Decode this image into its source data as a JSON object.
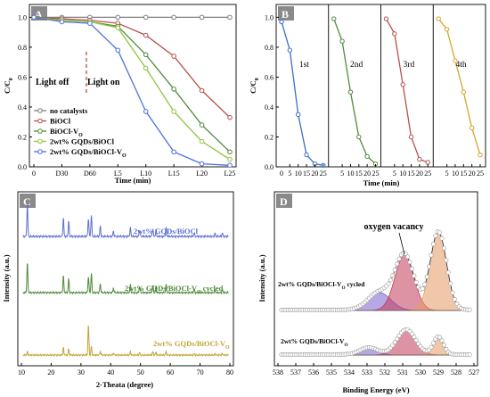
{
  "chart_data": [
    {
      "panel": "A",
      "type": "line",
      "xlabel": "Time (min)",
      "ylabel": "C/C",
      "ylabel_sub": "0",
      "xtick_labels": [
        "0",
        "D30",
        "D60",
        "L5",
        "L10",
        "L15",
        "L20",
        "L25"
      ],
      "yticks": [
        "0.0",
        "0.2",
        "0.4",
        "0.6",
        "0.8",
        "1.0"
      ],
      "ylim": [
        0.0,
        1.05
      ],
      "annotations": {
        "light_off": "Light off",
        "light_on": "Light on"
      },
      "legend_position": "bottom-left",
      "series": [
        {
          "name": "no catalysts",
          "color": "#7f7f7f",
          "values": [
            1.0,
            1.0,
            1.0,
            1.0,
            1.0,
            1.0,
            1.0,
            1.0
          ]
        },
        {
          "name": "BiOCl",
          "color": "#b5514a",
          "values": [
            1.0,
            0.99,
            0.98,
            0.96,
            0.88,
            0.74,
            0.51,
            0.33
          ]
        },
        {
          "name": "BiOCl-V",
          "sub": "O",
          "color": "#4f8a3c",
          "values": [
            1.0,
            0.98,
            0.97,
            0.94,
            0.75,
            0.52,
            0.28,
            0.1
          ]
        },
        {
          "name": "2wt% GQDs/BiOCl",
          "color": "#8dc63f",
          "values": [
            1.0,
            0.98,
            0.97,
            0.93,
            0.66,
            0.37,
            0.17,
            0.05
          ]
        },
        {
          "name": "2wt% GQDs/BiOCl-V",
          "sub": "O",
          "color": "#4d6fd6",
          "values": [
            1.0,
            0.97,
            0.96,
            0.78,
            0.37,
            0.1,
            0.02,
            0.01
          ]
        }
      ]
    },
    {
      "panel": "B",
      "type": "line",
      "xlabel": "Time (min)",
      "ylabel": "C/C",
      "ylabel_sub": "0",
      "yticks": [
        "0.0",
        "0.2",
        "0.4",
        "0.6",
        "0.8",
        "1.0"
      ],
      "ylim": [
        0.0,
        1.05
      ],
      "segment_xticks": [
        "5",
        "10",
        "15",
        "20",
        "25"
      ],
      "first_xtick": "0",
      "segments": [
        {
          "name": "1st",
          "color": "#3a6fc6",
          "x": [
            0,
            5,
            10,
            15,
            20,
            25
          ],
          "values": [
            0.97,
            0.78,
            0.35,
            0.08,
            0.02,
            0.01
          ]
        },
        {
          "name": "2nd",
          "color": "#4f8a3c",
          "x": [
            0,
            5,
            10,
            15,
            20,
            25
          ],
          "values": [
            0.99,
            0.84,
            0.5,
            0.2,
            0.07,
            0.02
          ]
        },
        {
          "name": "3rd",
          "color": "#b5514a",
          "x": [
            0,
            5,
            10,
            15,
            20,
            25
          ],
          "values": [
            0.99,
            0.89,
            0.55,
            0.2,
            0.05,
            0.03
          ]
        },
        {
          "name": "4th",
          "color": "#d3a62e",
          "x": [
            0,
            5,
            10,
            15,
            20,
            25
          ],
          "values": [
            0.99,
            0.92,
            0.71,
            0.5,
            0.26,
            0.08
          ]
        }
      ]
    },
    {
      "panel": "C",
      "type": "line",
      "xlabel": "2-Theata (degree)",
      "ylabel": "Intensity (a.u.)",
      "xticks": [
        10,
        20,
        30,
        40,
        50,
        60,
        70,
        80
      ],
      "xlim": [
        10,
        80
      ],
      "series": [
        {
          "name": "2wt% GQDs/BiOCl",
          "color": "#5b70d0"
        },
        {
          "name": "2wt% GQDs/BiOCl-V",
          "sub": "O",
          "suffix": " cycled",
          "color": "#4f8a3c"
        },
        {
          "name": "2wt% GQDs/BiOCl-V",
          "sub": "O",
          "suffix": "",
          "color": "#c4a334"
        }
      ]
    },
    {
      "panel": "D",
      "type": "line",
      "xlabel": "Binding Energy (eV)",
      "ylabel": "Intensity (a.u.)",
      "xticks": [
        538,
        537,
        536,
        535,
        534,
        533,
        532,
        531,
        530,
        529,
        528,
        527
      ],
      "xlim": [
        538,
        527
      ],
      "annotation": "oxygen vacancy",
      "spectra": [
        {
          "label": "2wt%  GQDs/BiOCl-V",
          "sub": "O",
          "suffix": " cycled"
        },
        {
          "label": "2wt%  GQDs/BiOCl-V",
          "sub": "O",
          "suffix": ""
        }
      ]
    }
  ]
}
